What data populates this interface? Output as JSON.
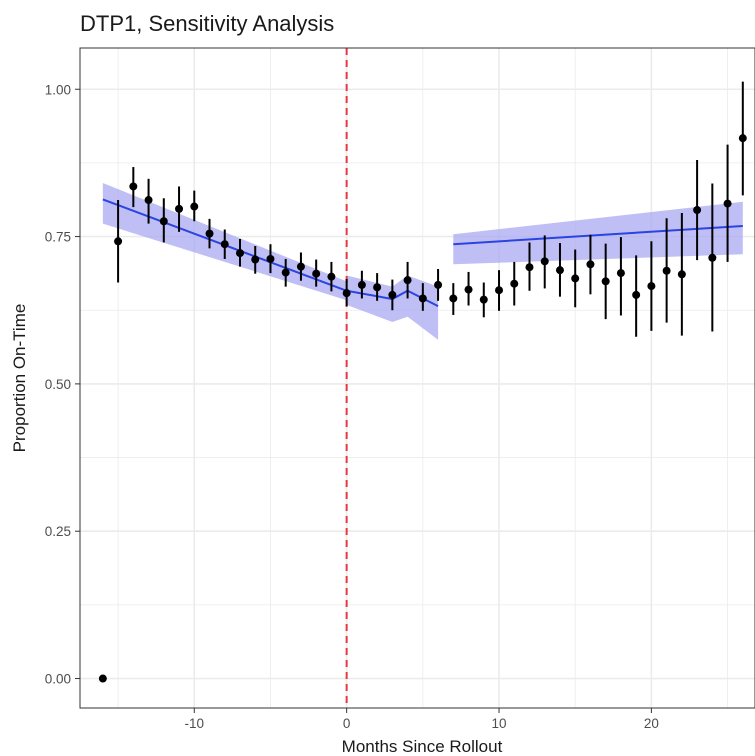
{
  "chart_data": {
    "type": "scatter",
    "title": "DTP1, Sensitivity Analysis",
    "xlabel": "Months Since Rollout",
    "ylabel": "Proportion On-Time",
    "xlim": [
      -17.5,
      26.8
    ],
    "ylim": [
      -0.05,
      1.07
    ],
    "x_ticks": [
      -10,
      0,
      10,
      20
    ],
    "x_tick_labels": [
      "-10",
      "0",
      "10",
      "20"
    ],
    "y_ticks": [
      0,
      0.25,
      0.5,
      0.75,
      1.0
    ],
    "y_tick_labels": [
      "0.00",
      "0.25",
      "0.50",
      "0.75",
      "1.00"
    ],
    "grid": true,
    "vline": {
      "x": 0,
      "color": "#e8373e",
      "style": "dashed"
    },
    "colors": {
      "points": "#000000",
      "fit_line": "#2b44e0",
      "band": "#a6a6f2",
      "grid": "#ebebeb"
    },
    "points": [
      {
        "x": -16,
        "y": 0.0,
        "lo": 0.0,
        "hi": 0.0
      },
      {
        "x": -15,
        "y": 0.742,
        "lo": 0.672,
        "hi": 0.812
      },
      {
        "x": -14,
        "y": 0.835,
        "lo": 0.8,
        "hi": 0.868
      },
      {
        "x": -13,
        "y": 0.812,
        "lo": 0.772,
        "hi": 0.848
      },
      {
        "x": -12,
        "y": 0.776,
        "lo": 0.74,
        "hi": 0.815
      },
      {
        "x": -11,
        "y": 0.797,
        "lo": 0.758,
        "hi": 0.835
      },
      {
        "x": -10,
        "y": 0.801,
        "lo": 0.776,
        "hi": 0.828
      },
      {
        "x": -9,
        "y": 0.755,
        "lo": 0.73,
        "hi": 0.78
      },
      {
        "x": -8,
        "y": 0.737,
        "lo": 0.712,
        "hi": 0.762
      },
      {
        "x": -7,
        "y": 0.722,
        "lo": 0.699,
        "hi": 0.746
      },
      {
        "x": -6,
        "y": 0.711,
        "lo": 0.687,
        "hi": 0.734
      },
      {
        "x": -5,
        "y": 0.712,
        "lo": 0.688,
        "hi": 0.737
      },
      {
        "x": -4,
        "y": 0.689,
        "lo": 0.665,
        "hi": 0.712
      },
      {
        "x": -3,
        "y": 0.699,
        "lo": 0.675,
        "hi": 0.723
      },
      {
        "x": -2,
        "y": 0.687,
        "lo": 0.665,
        "hi": 0.711
      },
      {
        "x": -1,
        "y": 0.682,
        "lo": 0.657,
        "hi": 0.707
      },
      {
        "x": 0,
        "y": 0.654,
        "lo": 0.632,
        "hi": 0.678
      },
      {
        "x": 1,
        "y": 0.668,
        "lo": 0.645,
        "hi": 0.692
      },
      {
        "x": 2,
        "y": 0.664,
        "lo": 0.641,
        "hi": 0.688
      },
      {
        "x": 3,
        "y": 0.651,
        "lo": 0.625,
        "hi": 0.677
      },
      {
        "x": 4,
        "y": 0.676,
        "lo": 0.645,
        "hi": 0.707
      },
      {
        "x": 5,
        "y": 0.645,
        "lo": 0.624,
        "hi": 0.671
      },
      {
        "x": 6,
        "y": 0.668,
        "lo": 0.641,
        "hi": 0.695
      },
      {
        "x": 7,
        "y": 0.645,
        "lo": 0.617,
        "hi": 0.671
      },
      {
        "x": 8,
        "y": 0.66,
        "lo": 0.633,
        "hi": 0.69
      },
      {
        "x": 9,
        "y": 0.643,
        "lo": 0.613,
        "hi": 0.672
      },
      {
        "x": 10,
        "y": 0.659,
        "lo": 0.624,
        "hi": 0.693
      },
      {
        "x": 11,
        "y": 0.67,
        "lo": 0.633,
        "hi": 0.707
      },
      {
        "x": 12,
        "y": 0.698,
        "lo": 0.658,
        "hi": 0.74
      },
      {
        "x": 13,
        "y": 0.708,
        "lo": 0.662,
        "hi": 0.752
      },
      {
        "x": 14,
        "y": 0.693,
        "lo": 0.648,
        "hi": 0.739
      },
      {
        "x": 15,
        "y": 0.679,
        "lo": 0.63,
        "hi": 0.728
      },
      {
        "x": 16,
        "y": 0.703,
        "lo": 0.652,
        "hi": 0.753
      },
      {
        "x": 17,
        "y": 0.674,
        "lo": 0.61,
        "hi": 0.738
      },
      {
        "x": 18,
        "y": 0.688,
        "lo": 0.616,
        "hi": 0.749
      },
      {
        "x": 19,
        "y": 0.651,
        "lo": 0.58,
        "hi": 0.718
      },
      {
        "x": 20,
        "y": 0.666,
        "lo": 0.59,
        "hi": 0.742
      },
      {
        "x": 21,
        "y": 0.692,
        "lo": 0.604,
        "hi": 0.781
      },
      {
        "x": 22,
        "y": 0.686,
        "lo": 0.582,
        "hi": 0.79
      },
      {
        "x": 23,
        "y": 0.795,
        "lo": 0.71,
        "hi": 0.88
      },
      {
        "x": 24,
        "y": 0.714,
        "lo": 0.589,
        "hi": 0.84
      },
      {
        "x": 25,
        "y": 0.806,
        "lo": 0.707,
        "hi": 0.906
      },
      {
        "x": 26,
        "y": 0.917,
        "lo": 0.82,
        "hi": 1.013
      }
    ],
    "fits": [
      {
        "x": [
          -16,
          0
        ],
        "y": [
          0.813,
          0.658
        ],
        "band_lo": [
          0.772,
          0.642
        ],
        "band_hi": [
          0.841,
          0.674
        ]
      },
      {
        "x": [
          0,
          3,
          4,
          6
        ],
        "y": [
          0.658,
          0.644,
          0.658,
          0.632
        ],
        "band_lo": [
          0.634,
          0.605,
          0.614,
          0.575
        ],
        "band_hi": [
          0.684,
          0.665,
          0.684,
          0.665
        ]
      },
      {
        "x": [
          7,
          26
        ],
        "y": [
          0.737,
          0.768
        ],
        "band_lo": [
          0.703,
          0.72
        ],
        "band_hi": [
          0.754,
          0.809
        ]
      }
    ]
  }
}
